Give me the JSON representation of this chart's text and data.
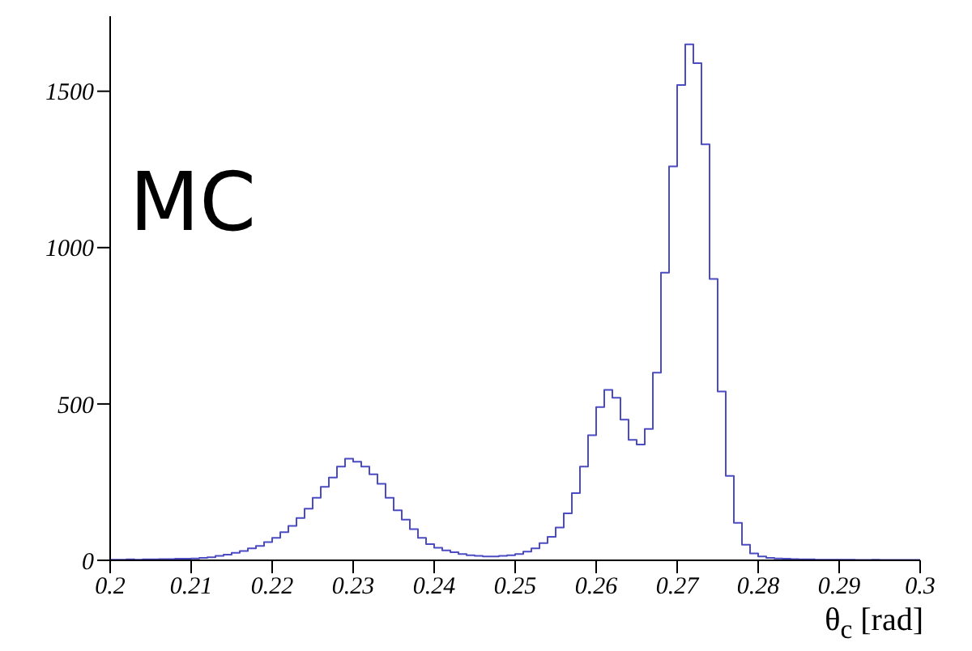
{
  "chart_data": {
    "type": "histogram",
    "xlabel": "θ$_{c}$ [rad]",
    "annotations": [
      "MC"
    ],
    "bins": [
      0.2,
      0.201,
      0.202,
      0.203,
      0.204,
      0.205,
      0.206,
      0.207,
      0.208,
      0.209,
      0.21,
      0.211,
      0.212,
      0.213,
      0.214,
      0.215,
      0.216,
      0.217,
      0.218,
      0.219,
      0.22,
      0.221,
      0.222,
      0.223,
      0.224,
      0.225,
      0.226,
      0.227,
      0.228,
      0.229,
      0.23,
      0.231,
      0.232,
      0.233,
      0.234,
      0.235,
      0.236,
      0.237,
      0.238,
      0.239,
      0.24,
      0.241,
      0.242,
      0.243,
      0.244,
      0.245,
      0.246,
      0.247,
      0.248,
      0.249,
      0.25,
      0.251,
      0.252,
      0.253,
      0.254,
      0.255,
      0.256,
      0.257,
      0.258,
      0.259,
      0.26,
      0.261,
      0.262,
      0.263,
      0.264,
      0.265,
      0.266,
      0.267,
      0.268,
      0.269,
      0.27,
      0.271,
      0.272,
      0.273,
      0.274,
      0.275,
      0.276,
      0.277,
      0.278,
      0.279,
      0.28,
      0.281,
      0.282,
      0.283,
      0.284,
      0.285,
      0.286,
      0.287,
      0.288,
      0.289,
      0.29,
      0.291,
      0.292,
      0.293,
      0.294,
      0.295,
      0.296,
      0.297,
      0.298,
      0.299,
      0.3
    ],
    "values": [
      2,
      2,
      3,
      2,
      3,
      3,
      4,
      4,
      5,
      5,
      6,
      8,
      10,
      14,
      18,
      24,
      30,
      38,
      46,
      58,
      72,
      90,
      110,
      135,
      165,
      200,
      235,
      265,
      300,
      325,
      315,
      300,
      275,
      245,
      200,
      160,
      130,
      100,
      72,
      52,
      40,
      32,
      26,
      20,
      16,
      14,
      12,
      12,
      14,
      16,
      20,
      28,
      38,
      55,
      75,
      105,
      150,
      215,
      300,
      400,
      490,
      545,
      520,
      450,
      385,
      370,
      420,
      600,
      920,
      1260,
      1520,
      1650,
      1590,
      1330,
      900,
      540,
      270,
      120,
      50,
      22,
      12,
      8,
      6,
      5,
      4,
      3,
      3,
      2,
      2,
      2,
      2,
      2,
      1,
      1,
      2,
      1,
      1,
      1,
      1,
      1
    ],
    "color": "#4b4bc4",
    "xlim": [
      0.2,
      0.3
    ],
    "xticks": [
      0.2,
      0.21,
      0.22,
      0.23,
      0.24,
      0.25,
      0.26,
      0.27,
      0.28,
      0.29,
      0.3
    ],
    "ylim": [
      0,
      1740
    ],
    "yticks": [
      0,
      500,
      1000,
      1500
    ],
    "grid": false
  }
}
